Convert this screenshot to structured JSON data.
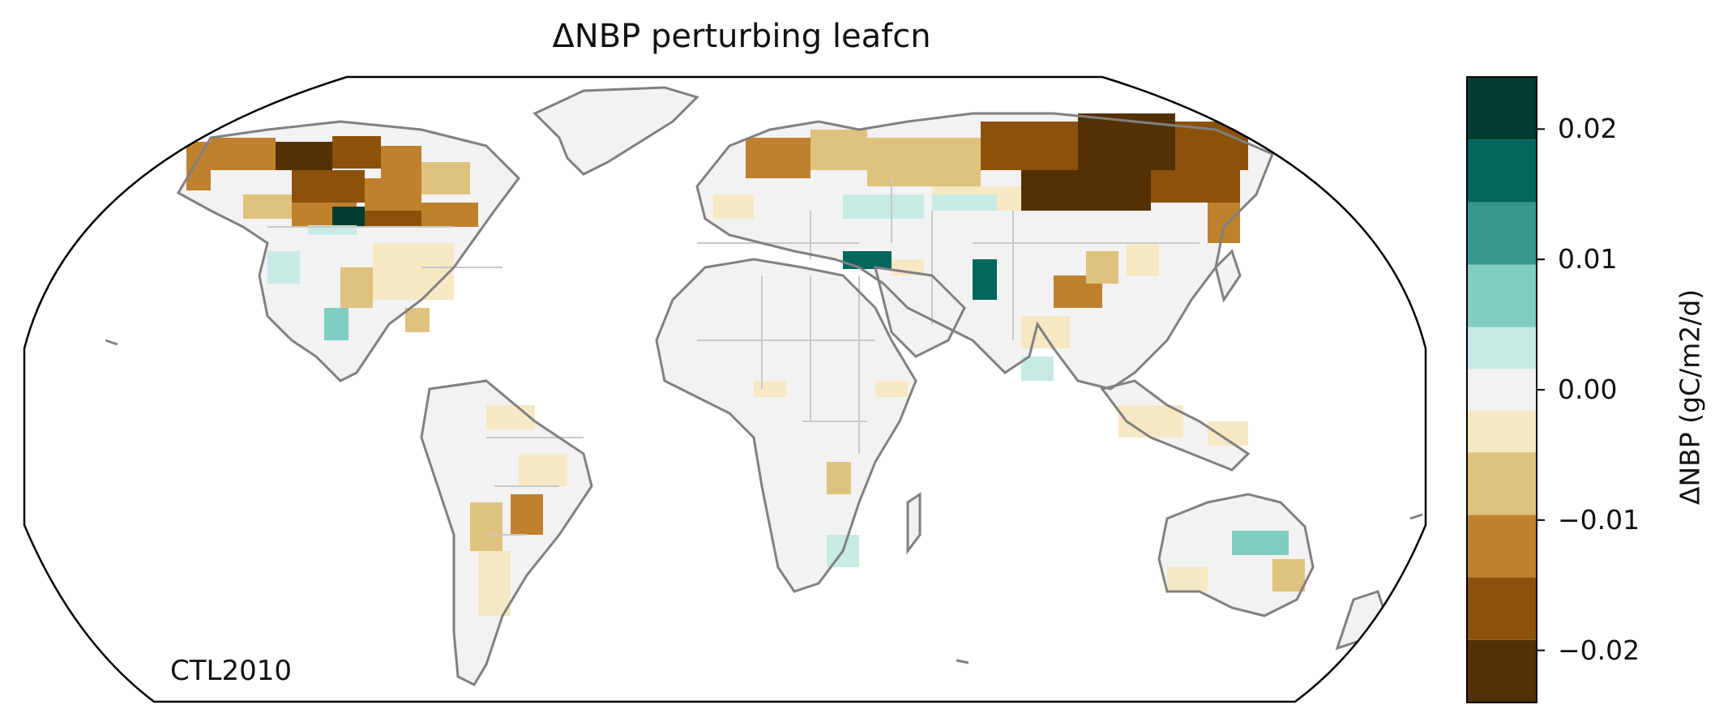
{
  "title": "ΔNBP perturbing leafcn",
  "panel_label": "CTL2010",
  "colorbar": {
    "label": "ΔNBP (gC/m2/d)",
    "ticks": [
      "−0.02",
      "−0.01",
      "0.00",
      "0.01",
      "0.02"
    ],
    "tick_values": [
      -0.02,
      -0.01,
      0.0,
      0.01,
      0.02
    ],
    "range": [
      -0.024,
      0.024
    ],
    "bins": [
      {
        "from": -0.024,
        "to": -0.0192,
        "color": "#543005"
      },
      {
        "from": -0.0192,
        "to": -0.0144,
        "color": "#8c510a"
      },
      {
        "from": -0.0144,
        "to": -0.0096,
        "color": "#bf812d"
      },
      {
        "from": -0.0096,
        "to": -0.0048,
        "color": "#dfc27d"
      },
      {
        "from": -0.0048,
        "to": -0.0016,
        "color": "#f6e8c3"
      },
      {
        "from": -0.0016,
        "to": 0.0016,
        "color": "#f2f2f2"
      },
      {
        "from": 0.0016,
        "to": 0.0048,
        "color": "#c7eae5"
      },
      {
        "from": 0.0048,
        "to": 0.0096,
        "color": "#80cdc1"
      },
      {
        "from": 0.0096,
        "to": 0.0144,
        "color": "#35978f"
      },
      {
        "from": 0.0144,
        "to": 0.0192,
        "color": "#01665e"
      },
      {
        "from": 0.0192,
        "to": 0.024,
        "color": "#003c30"
      }
    ]
  },
  "colors": {
    "coastline": "#808080",
    "borders": "#c8c8c8",
    "frame": "#000000"
  }
}
